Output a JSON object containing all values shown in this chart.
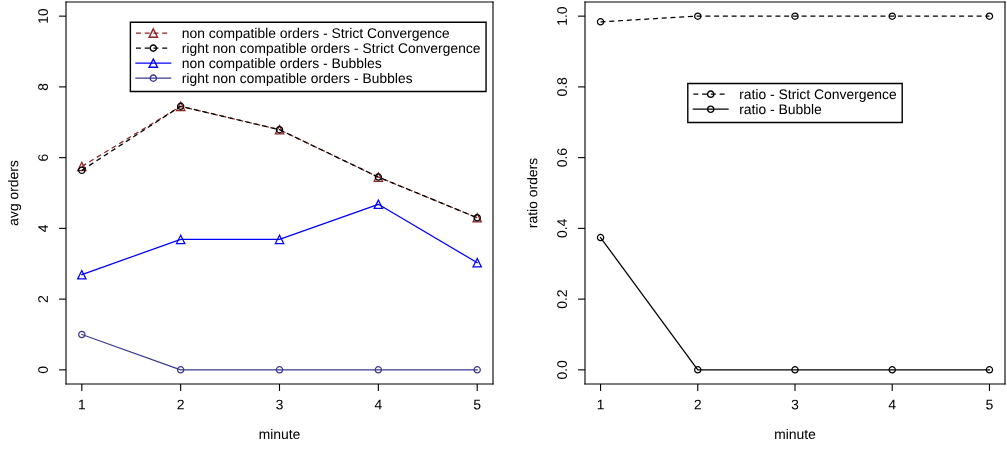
{
  "chart_data": [
    {
      "type": "line",
      "xlabel": "minute",
      "ylabel": "avg orders",
      "x": [
        1,
        2,
        3,
        4,
        5
      ],
      "xlim": [
        0.84,
        5.16
      ],
      "xticks": [
        1,
        2,
        3,
        4,
        5
      ],
      "ylim": [
        -0.4,
        10.4
      ],
      "yticks": [
        0,
        2,
        4,
        6,
        8,
        10
      ],
      "legend": "top right",
      "grid": false,
      "series": [
        {
          "name": "non compatible orders - Strict Convergence",
          "color": "#8b2323",
          "marker": "triangle",
          "line_style": "dashed",
          "values": [
            5.75,
            7.45,
            6.79,
            5.45,
            4.3
          ]
        },
        {
          "name": "right non compatible orders - Strict Convergence",
          "color": "#000000",
          "marker": "circle",
          "line_style": "dashed",
          "values": [
            5.64,
            7.45,
            6.79,
            5.45,
            4.3
          ]
        },
        {
          "name": "non compatible orders - Bubbles",
          "color": "#0000ff",
          "marker": "triangle",
          "line_style": "solid",
          "values": [
            2.69,
            3.69,
            3.69,
            4.68,
            3.03
          ]
        },
        {
          "name": "right non compatible orders - Bubbles",
          "color": "#3a3a8c",
          "marker": "circle",
          "line_style": "solid",
          "values": [
            1,
            0,
            0,
            0,
            0
          ]
        }
      ]
    },
    {
      "type": "line",
      "xlabel": "minute",
      "ylabel": "ratio orders",
      "x": [
        1,
        2,
        3,
        4,
        5
      ],
      "xlim": [
        0.84,
        5.16
      ],
      "xticks": [
        1,
        2,
        3,
        4,
        5
      ],
      "ylim": [
        -0.04,
        1.04
      ],
      "yticks": [
        {
          "value": 0,
          "label": "0.0"
        },
        {
          "value": 0.2,
          "label": "0.2"
        },
        {
          "value": 0.4,
          "label": "0.4"
        },
        {
          "value": 0.6,
          "label": "0.6"
        },
        {
          "value": 0.8,
          "label": "0.8"
        },
        {
          "value": 1,
          "label": "1.0"
        }
      ],
      "legend": "top",
      "grid": false,
      "series": [
        {
          "name": "ratio - Strict Convergence",
          "color": "#000000",
          "marker": "circle",
          "line_style": "dashed",
          "values": [
            0.984,
            1,
            1,
            1,
            1
          ]
        },
        {
          "name": "ratio - Bubble",
          "color": "#000000",
          "marker": "circle",
          "line_style": "solid",
          "values": [
            0.374,
            0,
            0,
            0,
            0
          ]
        }
      ]
    }
  ]
}
